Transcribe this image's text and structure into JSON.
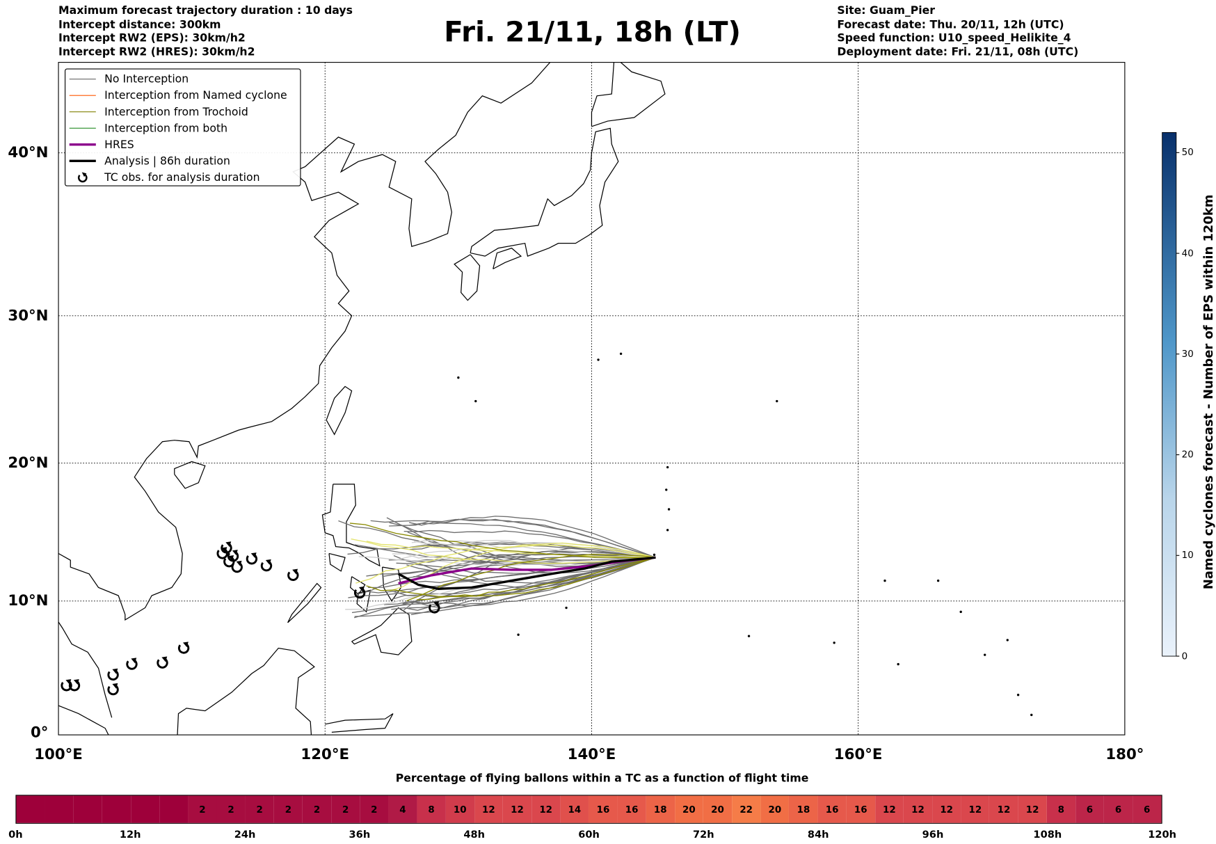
{
  "header_left": [
    "Maximum forecast trajectory duration : 10 days",
    "Intercept distance: 300km",
    "Intercept RW2 (EPS):  30km/h2",
    "Intercept RW2 (HRES): 30km/h2"
  ],
  "title": "Fri. 21/11, 18h (LT)",
  "header_right": [
    "Site: Guam_Pier",
    "Forecast date: Thu. 20/11, 12h (UTC)",
    "Speed function: U10_speed_Helikite_4",
    "Deployment date: Fri. 21/11, 08h (UTC)"
  ],
  "legend": [
    {
      "label": "No Interception",
      "color": "#666666",
      "icon": "line"
    },
    {
      "label": "Interception from Named cyclone",
      "color": "#ff5500",
      "icon": "line"
    },
    {
      "label": "Interception from Trochoid",
      "color": "#808000",
      "icon": "line"
    },
    {
      "label": "Interception from both",
      "color": "#228b22",
      "icon": "line"
    },
    {
      "label": "HRES",
      "color": "#8b008b",
      "icon": "thick-line"
    },
    {
      "label": "Analysis | 86h duration",
      "color": "#000000",
      "icon": "thick-line"
    },
    {
      "label": "TC obs. for analysis duration",
      "color": "#000000",
      "icon": "cyclone-symbol"
    }
  ],
  "axes": {
    "lat_labels": [
      {
        "lat": 40,
        "label": "40°N"
      },
      {
        "lat": 30,
        "label": "30°N"
      },
      {
        "lat": 20,
        "label": "20°N"
      },
      {
        "lat": 10,
        "label": "10°N"
      },
      {
        "lat": 0,
        "label": "0°"
      }
    ],
    "lon_labels": [
      {
        "lon": 100,
        "label": "100°E"
      },
      {
        "lon": 120,
        "label": "120°E"
      },
      {
        "lon": 140,
        "label": "140°E"
      },
      {
        "lon": 160,
        "label": "160°E"
      },
      {
        "lon": 180,
        "label": "180°"
      }
    ],
    "extent": {
      "lon": [
        100,
        180
      ],
      "lat": [
        0,
        45
      ]
    }
  },
  "site": {
    "name": "Guam_Pier",
    "lon": 144.8,
    "lat": 13.2
  },
  "hres_track": [
    [
      144.8,
      13.2
    ],
    [
      142,
      12.9
    ],
    [
      140,
      12.6
    ],
    [
      137,
      12.3
    ],
    [
      134,
      12.3
    ],
    [
      131,
      12.4
    ],
    [
      128,
      11.9
    ],
    [
      125.5,
      11.3
    ]
  ],
  "analysis_track": [
    [
      144.8,
      13.2
    ],
    [
      141.5,
      12.9
    ],
    [
      139.5,
      12.4
    ],
    [
      137,
      12.0
    ],
    [
      134,
      11.5
    ],
    [
      131,
      11.0
    ],
    [
      128.5,
      10.9
    ],
    [
      127,
      11.2
    ],
    [
      125.5,
      12.0
    ]
  ],
  "tc_obs": [
    [
      112.3,
      13.5
    ],
    [
      112.6,
      13.9
    ],
    [
      112.8,
      12.9
    ],
    [
      113.1,
      13.3
    ],
    [
      113.4,
      12.5
    ],
    [
      114.5,
      13.1
    ],
    [
      115.6,
      12.6
    ],
    [
      117.6,
      11.9
    ],
    [
      122.6,
      10.6
    ],
    [
      128.2,
      9.5
    ],
    [
      109.4,
      6.5
    ],
    [
      107.8,
      5.4
    ],
    [
      105.5,
      5.3
    ],
    [
      104.1,
      4.5
    ],
    [
      104.1,
      3.4
    ],
    [
      100.6,
      3.7
    ],
    [
      101.2,
      3.7
    ]
  ],
  "colorbar": {
    "label": "Named cyclones forecast - Number of EPS within 120km",
    "min": 0,
    "max": 52,
    "ticks": [
      "0",
      "10",
      "20",
      "30",
      "40",
      "50"
    ],
    "color_low": "#eaf2fb",
    "color_high": "#08306b"
  },
  "timeline": {
    "title": "Percentage of flying ballons within a TC as a function of flight time",
    "step_hours": 3,
    "values": [
      0,
      0,
      0,
      0,
      0,
      0,
      2,
      2,
      2,
      2,
      2,
      2,
      2,
      4,
      8,
      10,
      12,
      12,
      12,
      14,
      16,
      16,
      18,
      20,
      20,
      22,
      20,
      18,
      16,
      16,
      12,
      12,
      12,
      12,
      12,
      12,
      8,
      6,
      6,
      6
    ],
    "ticks": [
      "0h",
      "12h",
      "24h",
      "36h",
      "48h",
      "60h",
      "72h",
      "84h",
      "96h",
      "108h",
      "120h"
    ]
  }
}
